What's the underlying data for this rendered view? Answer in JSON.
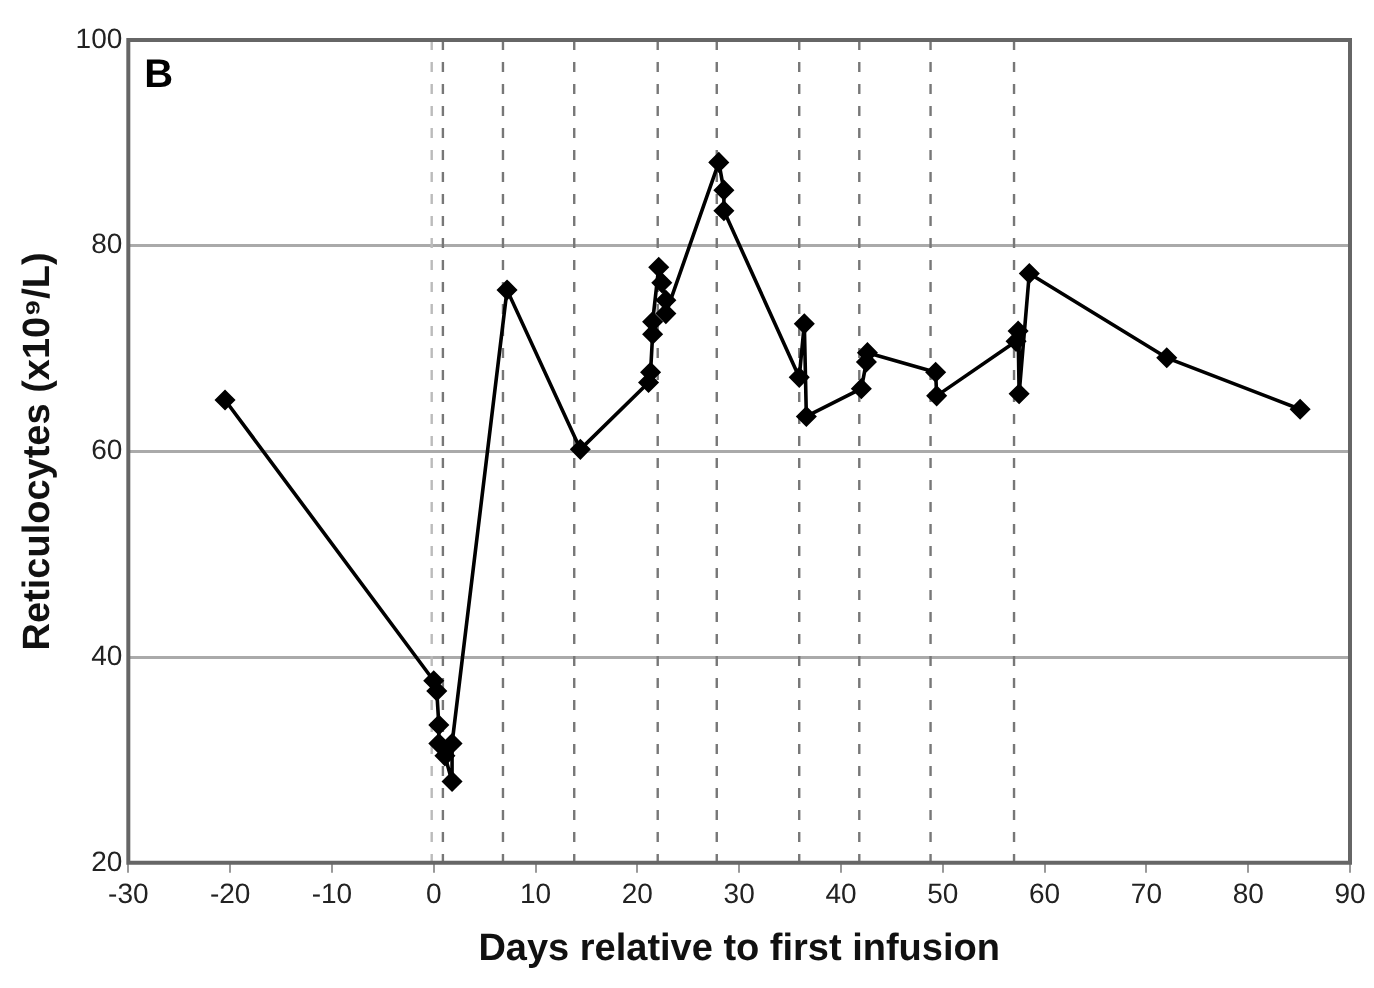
{
  "chart_data": {
    "type": "line",
    "xlabel": "Days relative to first infusion",
    "ylabel": "Reticulocytes (x10⁹/L)",
    "x": [
      -20.5,
      0,
      0.3,
      0.5,
      0.5,
      1.1,
      1.8,
      1.8,
      7.2,
      14.4,
      21.1,
      21.3,
      21.5,
      21.5,
      22.1,
      22.4,
      22.8,
      22.8,
      28,
      28.5,
      28.5,
      35.9,
      36.4,
      36.6,
      42,
      42.5,
      42.6,
      49.3,
      49.4,
      57.2,
      57.4,
      57.5,
      58.5,
      72,
      85.1
    ],
    "series": [
      {
        "color": "#000000",
        "values": [
          65,
          37.7,
          36.7,
          33.4,
          31.6,
          30.4,
          27.9,
          31.6,
          75.7,
          60.2,
          66.7,
          67.7,
          71.4,
          72.6,
          77.9,
          76.4,
          74.7,
          73.4,
          88.1,
          85.4,
          83.4,
          67.2,
          72.4,
          63.4,
          66.1,
          68.7,
          69.6,
          67.7,
          65.4,
          70.7,
          71.7,
          65.6,
          77.3,
          69.1,
          64.1
        ]
      }
    ],
    "xlim": [
      -30,
      90
    ],
    "xticks": [
      -30,
      -20,
      -10,
      0,
      10,
      20,
      30,
      40,
      50,
      60,
      70,
      80,
      90
    ],
    "ylim": [
      20,
      100
    ],
    "yticks": [
      20,
      40,
      60,
      80,
      100
    ],
    "grid": "y",
    "marker": "diamond",
    "line_style": "solid",
    "legend": false,
    "ref_lines": [
      {
        "axis": "x",
        "value": -0.2,
        "color": "#bbbbbb",
        "line_style": "dashed"
      },
      {
        "axis": "x",
        "value": 0.9,
        "color": "#777777",
        "line_style": "dashed"
      },
      {
        "axis": "x",
        "value": 6.8,
        "color": "#777777",
        "line_style": "dashed"
      },
      {
        "axis": "x",
        "value": 13.8,
        "color": "#777777",
        "line_style": "dashed"
      },
      {
        "axis": "x",
        "value": 22,
        "color": "#777777",
        "line_style": "dashed"
      },
      {
        "axis": "x",
        "value": 27.8,
        "color": "#777777",
        "line_style": "dashed"
      },
      {
        "axis": "x",
        "value": 35.9,
        "color": "#777777",
        "line_style": "dashed"
      },
      {
        "axis": "x",
        "value": 41.8,
        "color": "#777777",
        "line_style": "dashed"
      },
      {
        "axis": "x",
        "value": 48.8,
        "color": "#777777",
        "line_style": "dashed"
      },
      {
        "axis": "x",
        "value": 57,
        "color": "#777777",
        "line_style": "dashed"
      }
    ],
    "annotations": [
      "B"
    ]
  }
}
